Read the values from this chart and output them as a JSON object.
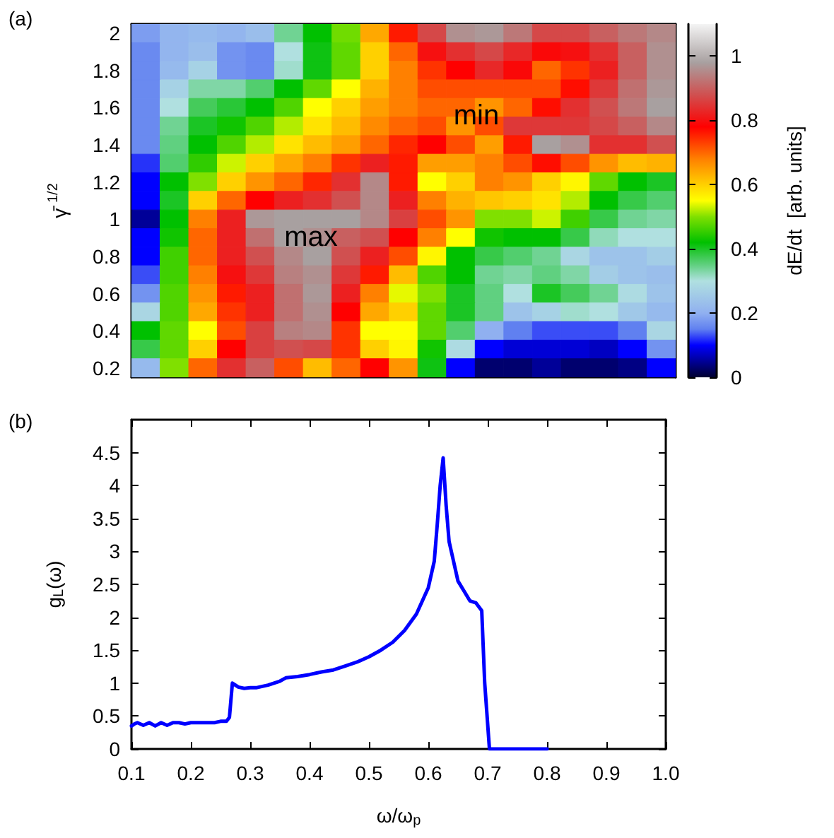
{
  "chart_data": [
    {
      "type": "heatmap",
      "ylabel": "γ̄ $^{1/2}$",
      "clabel": "dE/dt  [arb. units]",
      "annotations": [
        "(a)",
        "max",
        "min"
      ],
      "categories": [
        null,
        null,
        null,
        null,
        null,
        null,
        null,
        null,
        null,
        null,
        null,
        null,
        null,
        null,
        null,
        null,
        null,
        null,
        null
      ],
      "y_categories": [
        "2",
        null,
        "1.8",
        null,
        "1.6",
        null,
        "1.4",
        null,
        "1.2",
        null,
        "1",
        null,
        "0.8",
        null,
        "0.6",
        null,
        "0.4",
        null,
        "0.2"
      ],
      "clim": [
        0,
        1.1
      ],
      "cticks": [
        0,
        0.2,
        0.4,
        0.6,
        0.8,
        1
      ],
      "cells": [
        [
          0.18,
          0.21,
          0.22,
          0.21,
          0.23,
          0.34,
          0.42,
          0.49,
          0.64,
          0.76,
          0.87,
          0.96,
          0.97,
          0.93,
          0.87,
          0.87,
          0.9,
          0.93,
          0.95
        ],
        [
          0.16,
          0.21,
          0.23,
          0.17,
          0.16,
          0.3,
          0.41,
          0.48,
          0.6,
          0.7,
          0.8,
          0.84,
          0.87,
          0.83,
          0.79,
          0.8,
          0.84,
          0.9,
          0.96
        ],
        [
          0.16,
          0.22,
          0.27,
          0.17,
          0.16,
          0.31,
          0.41,
          0.48,
          0.6,
          0.68,
          0.74,
          0.78,
          0.83,
          0.79,
          0.7,
          0.74,
          0.82,
          0.9,
          0.96
        ],
        [
          0.16,
          0.27,
          0.33,
          0.33,
          0.36,
          0.42,
          0.48,
          0.55,
          0.63,
          0.68,
          0.72,
          0.72,
          0.72,
          0.72,
          0.72,
          0.77,
          0.85,
          0.92,
          0.97
        ],
        [
          0.16,
          0.3,
          0.37,
          0.39,
          0.42,
          0.47,
          0.55,
          0.6,
          0.65,
          0.68,
          0.7,
          0.7,
          0.66,
          0.7,
          0.77,
          0.84,
          0.88,
          0.93,
          0.98
        ],
        [
          0.16,
          0.34,
          0.4,
          0.43,
          0.47,
          0.52,
          0.58,
          0.62,
          0.67,
          0.7,
          0.72,
          0.66,
          0.72,
          0.85,
          0.85,
          0.85,
          0.87,
          0.9,
          0.95
        ],
        [
          0.16,
          0.35,
          0.42,
          0.47,
          0.52,
          0.58,
          0.62,
          0.65,
          0.7,
          0.75,
          0.78,
          0.72,
          0.65,
          0.76,
          0.98,
          0.96,
          0.84,
          0.84,
          0.88
        ],
        [
          0.12,
          0.36,
          0.45,
          0.53,
          0.6,
          0.64,
          0.68,
          0.74,
          0.82,
          0.76,
          0.65,
          0.65,
          0.68,
          0.72,
          0.77,
          0.72,
          0.66,
          0.62,
          0.63
        ],
        [
          0.1,
          0.42,
          0.5,
          0.6,
          0.66,
          0.7,
          0.75,
          0.84,
          0.95,
          0.76,
          0.55,
          0.6,
          0.68,
          0.66,
          0.6,
          0.56,
          0.48,
          0.42,
          0.4
        ],
        [
          0.1,
          0.4,
          0.6,
          0.7,
          0.78,
          0.82,
          0.84,
          0.88,
          0.95,
          0.82,
          0.68,
          0.63,
          0.61,
          0.6,
          0.58,
          0.52,
          0.42,
          0.38,
          0.36
        ],
        [
          0.05,
          0.42,
          0.68,
          0.82,
          0.97,
          0.98,
          0.98,
          0.98,
          0.95,
          0.86,
          0.72,
          0.66,
          0.5,
          0.5,
          0.53,
          0.46,
          0.38,
          0.34,
          0.33
        ],
        [
          0.1,
          0.43,
          0.7,
          0.82,
          0.92,
          0.98,
          0.96,
          0.9,
          0.88,
          0.78,
          0.68,
          0.55,
          0.43,
          0.42,
          0.42,
          0.38,
          0.32,
          0.3,
          0.3
        ],
        [
          0.1,
          0.46,
          0.7,
          0.82,
          0.88,
          0.95,
          0.98,
          0.88,
          0.82,
          0.72,
          0.56,
          0.42,
          0.38,
          0.36,
          0.34,
          0.28,
          0.24,
          0.24,
          0.26
        ],
        [
          0.13,
          0.46,
          0.68,
          0.8,
          0.85,
          0.94,
          0.96,
          0.85,
          0.76,
          0.62,
          0.47,
          0.42,
          0.34,
          0.33,
          0.35,
          0.33,
          0.26,
          0.24,
          0.23
        ],
        [
          0.17,
          0.47,
          0.66,
          0.76,
          0.82,
          0.92,
          0.97,
          0.82,
          0.68,
          0.54,
          0.5,
          0.4,
          0.35,
          0.3,
          0.4,
          0.37,
          0.34,
          0.29,
          0.24
        ],
        [
          0.28,
          0.47,
          0.64,
          0.74,
          0.82,
          0.92,
          0.96,
          0.78,
          0.64,
          0.6,
          0.48,
          0.4,
          0.35,
          0.24,
          0.27,
          0.31,
          0.3,
          0.25,
          0.22
        ],
        [
          0.42,
          0.48,
          0.55,
          0.72,
          0.86,
          0.94,
          0.95,
          0.74,
          0.55,
          0.55,
          0.48,
          0.36,
          0.2,
          0.15,
          0.13,
          0.13,
          0.13,
          0.15,
          0.28
        ],
        [
          0.38,
          0.48,
          0.6,
          0.78,
          0.86,
          0.88,
          0.87,
          0.74,
          0.6,
          0.56,
          0.43,
          0.29,
          0.1,
          0.08,
          0.08,
          0.08,
          0.07,
          0.1,
          0.17
        ],
        [
          0.22,
          0.5,
          0.7,
          0.84,
          0.9,
          0.72,
          0.62,
          0.7,
          0.78,
          0.66,
          0.41,
          0.1,
          0.03,
          0.03,
          0.05,
          0.03,
          0.03,
          0.04,
          0.1
        ]
      ]
    },
    {
      "type": "line",
      "xlabel": "ω/ω$_{p}$",
      "ylabel": "g$_{L}$(ω)",
      "annotations": [
        "(b)"
      ],
      "xlim": [
        0.1,
        1.0
      ],
      "xticks": [
        0.1,
        0.2,
        0.3,
        0.4,
        0.5,
        0.6,
        0.7,
        0.8,
        0.9,
        {
          "value": 1,
          "label": "1.0"
        }
      ],
      "ylim": [
        0,
        5
      ],
      "yticks": [
        0,
        0.5,
        1,
        1.5,
        2,
        2.5,
        3,
        3.5,
        4,
        4.5
      ],
      "grid": false,
      "marker": "none",
      "line_style": "solid",
      "series": [
        {
          "color": "#0000ff",
          "x": [
            0.1,
            0.105,
            0.11,
            0.12,
            0.13,
            0.14,
            0.15,
            0.16,
            0.17,
            0.18,
            0.19,
            0.2,
            0.22,
            0.24,
            0.25,
            0.26,
            0.265,
            0.27,
            0.28,
            0.29,
            0.3,
            0.31,
            0.33,
            0.35,
            0.36,
            0.38,
            0.4,
            0.42,
            0.44,
            0.46,
            0.48,
            0.5,
            0.52,
            0.54,
            0.56,
            0.58,
            0.6,
            0.61,
            0.615,
            0.62,
            0.625,
            0.63,
            0.635,
            0.64,
            0.65,
            0.66,
            0.67,
            0.68,
            0.69,
            0.695,
            0.703,
            0.75,
            0.8
          ],
          "values": [
            0.35,
            0.38,
            0.4,
            0.36,
            0.4,
            0.35,
            0.4,
            0.36,
            0.4,
            0.4,
            0.38,
            0.4,
            0.4,
            0.4,
            0.42,
            0.42,
            0.48,
            1.0,
            0.94,
            0.92,
            0.93,
            0.93,
            0.97,
            1.03,
            1.08,
            1.1,
            1.13,
            1.17,
            1.2,
            1.26,
            1.32,
            1.4,
            1.5,
            1.62,
            1.8,
            2.05,
            2.45,
            2.85,
            3.4,
            4.0,
            4.42,
            3.7,
            3.15,
            2.95,
            2.55,
            2.4,
            2.25,
            2.22,
            2.1,
            1.0,
            0,
            0,
            0
          ]
        }
      ]
    }
  ]
}
